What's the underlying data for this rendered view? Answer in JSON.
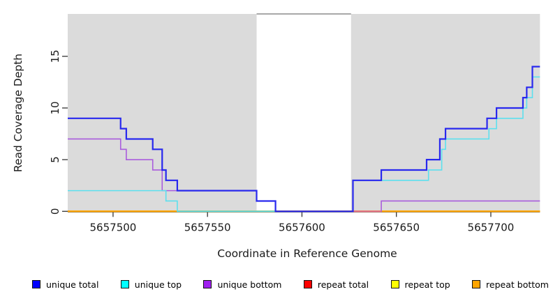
{
  "figure": {
    "x_axis_title": "Coordinate in Reference Genome",
    "y_axis_title": "Read Coverage Depth"
  },
  "legend": {
    "items": [
      {
        "label": "unique total",
        "color": "#0000ff"
      },
      {
        "label": "unique top",
        "color": "#00ffff"
      },
      {
        "label": "unique bottom",
        "color": "#a020f0"
      },
      {
        "label": "repeat total",
        "color": "#ff0000"
      },
      {
        "label": "repeat top",
        "color": "#ffff00"
      },
      {
        "label": "repeat bottom",
        "color": "#ffa500"
      }
    ]
  },
  "chart_data": {
    "type": "line",
    "step": true,
    "title": "",
    "xlabel": "Coordinate in Reference Genome",
    "ylabel": "Read Coverage Depth",
    "xlim": [
      5657476,
      5657726
    ],
    "ylim": [
      0,
      19.1
    ],
    "x_ticks": [
      5657500,
      5657550,
      5657600,
      5657650,
      5657700
    ],
    "y_ticks": [
      0,
      5,
      10,
      15
    ],
    "grid": false,
    "legend_position": "bottom",
    "shaded_regions": [
      {
        "x0": 5657476,
        "x1": 5657576,
        "color": "#dbdbdb"
      },
      {
        "x0": 5657626,
        "x1": 5657726,
        "color": "#dbdbdb"
      }
    ],
    "gap_region": {
      "x0": 5657576,
      "x1": 5657626,
      "top_border_color": "#8c8c8c"
    },
    "series": [
      {
        "name": "repeat total",
        "color": "#ff0000",
        "width": 2,
        "points": [
          [
            5657476,
            0
          ]
        ]
      },
      {
        "name": "repeat top",
        "color": "#ffff00",
        "width": 2,
        "points": [
          [
            5657476,
            0
          ]
        ]
      },
      {
        "name": "repeat bottom",
        "color": "#ffa500",
        "width": 2,
        "points": [
          [
            5657476,
            0
          ]
        ]
      },
      {
        "name": "unique bottom",
        "color": "#a95cdd",
        "width": 1.6,
        "points": [
          [
            5657476,
            7
          ],
          [
            5657504,
            6
          ],
          [
            5657507,
            5
          ],
          [
            5657521,
            4
          ],
          [
            5657526,
            2
          ],
          [
            5657576,
            1
          ],
          [
            5657586,
            0
          ],
          [
            5657642,
            1
          ]
        ]
      },
      {
        "name": "unique top",
        "color": "#5ce0ee",
        "width": 1.6,
        "points": [
          [
            5657476,
            2
          ],
          [
            5657528,
            1
          ],
          [
            5657534,
            0
          ],
          [
            5657627,
            3
          ],
          [
            5657667,
            4
          ],
          [
            5657674,
            6
          ],
          [
            5657676,
            7
          ],
          [
            5657699,
            8
          ],
          [
            5657703,
            9
          ],
          [
            5657717,
            10
          ],
          [
            5657719,
            11
          ],
          [
            5657722,
            13
          ]
        ]
      },
      {
        "name": "unique total",
        "color": "#2828ee",
        "width": 2.2,
        "points": [
          [
            5657476,
            9
          ],
          [
            5657504,
            8
          ],
          [
            5657507,
            7
          ],
          [
            5657521,
            6
          ],
          [
            5657526,
            4
          ],
          [
            5657528,
            3
          ],
          [
            5657534,
            2
          ],
          [
            5657576,
            1
          ],
          [
            5657586,
            0
          ],
          [
            5657627,
            3
          ],
          [
            5657642,
            4
          ],
          [
            5657666,
            5
          ],
          [
            5657673,
            7
          ],
          [
            5657676,
            8
          ],
          [
            5657698,
            9
          ],
          [
            5657703,
            10
          ],
          [
            5657717,
            11
          ],
          [
            5657719,
            12
          ],
          [
            5657722,
            14
          ]
        ]
      }
    ],
    "zero_line_overlaps": [
      {
        "after_series": 2,
        "x0": 5657534,
        "x1": 5657586,
        "y": 0,
        "color": "#8fce8f",
        "width": 2
      },
      {
        "after_series": 3,
        "x0": 5657627,
        "x1": 5657642,
        "y": 0,
        "color": "#e5718f",
        "width": 2
      }
    ]
  }
}
